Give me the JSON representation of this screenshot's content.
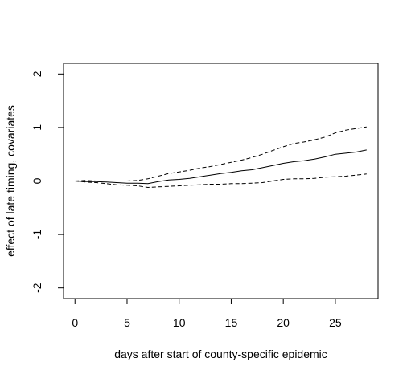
{
  "chart_data": {
    "type": "line",
    "title": "",
    "xlabel": "days after start of county-specific epidemic",
    "ylabel": "effect of late timing, covariates",
    "xlim": [
      -1.1,
      29.1
    ],
    "ylim": [
      -2.2,
      2.2
    ],
    "x_ticks": [
      0,
      5,
      10,
      15,
      20,
      25
    ],
    "y_ticks": [
      -2,
      -1,
      0,
      1,
      2
    ],
    "grid": false,
    "legend": "none",
    "reference_line": {
      "y": 0,
      "style": "dotted"
    },
    "x": [
      0,
      1,
      2,
      3,
      4,
      5,
      6,
      7,
      8,
      9,
      10,
      11,
      12,
      13,
      14,
      15,
      16,
      17,
      18,
      19,
      20,
      21,
      22,
      23,
      24,
      25,
      26,
      27,
      28
    ],
    "series": [
      {
        "style": "solid",
        "color": "#000000",
        "values": [
          0.0,
          -0.01,
          -0.01,
          -0.02,
          -0.03,
          -0.04,
          -0.04,
          -0.05,
          -0.01,
          0.02,
          0.03,
          0.05,
          0.08,
          0.11,
          0.14,
          0.16,
          0.19,
          0.21,
          0.25,
          0.29,
          0.33,
          0.36,
          0.38,
          0.41,
          0.45,
          0.5,
          0.52,
          0.54,
          0.58
        ]
      },
      {
        "style": "dashed",
        "color": "#000000",
        "values": [
          0.0,
          0.01,
          0.0,
          0.0,
          0.0,
          0.0,
          0.01,
          0.04,
          0.09,
          0.14,
          0.17,
          0.2,
          0.24,
          0.27,
          0.31,
          0.35,
          0.39,
          0.44,
          0.5,
          0.57,
          0.64,
          0.7,
          0.73,
          0.77,
          0.82,
          0.9,
          0.95,
          0.98,
          1.01
        ]
      },
      {
        "style": "dashed",
        "color": "#000000",
        "values": [
          0.0,
          -0.02,
          -0.03,
          -0.05,
          -0.07,
          -0.08,
          -0.09,
          -0.12,
          -0.11,
          -0.1,
          -0.09,
          -0.08,
          -0.07,
          -0.06,
          -0.06,
          -0.05,
          -0.05,
          -0.04,
          -0.03,
          0.0,
          0.03,
          0.04,
          0.04,
          0.05,
          0.07,
          0.08,
          0.09,
          0.11,
          0.13
        ]
      }
    ]
  }
}
